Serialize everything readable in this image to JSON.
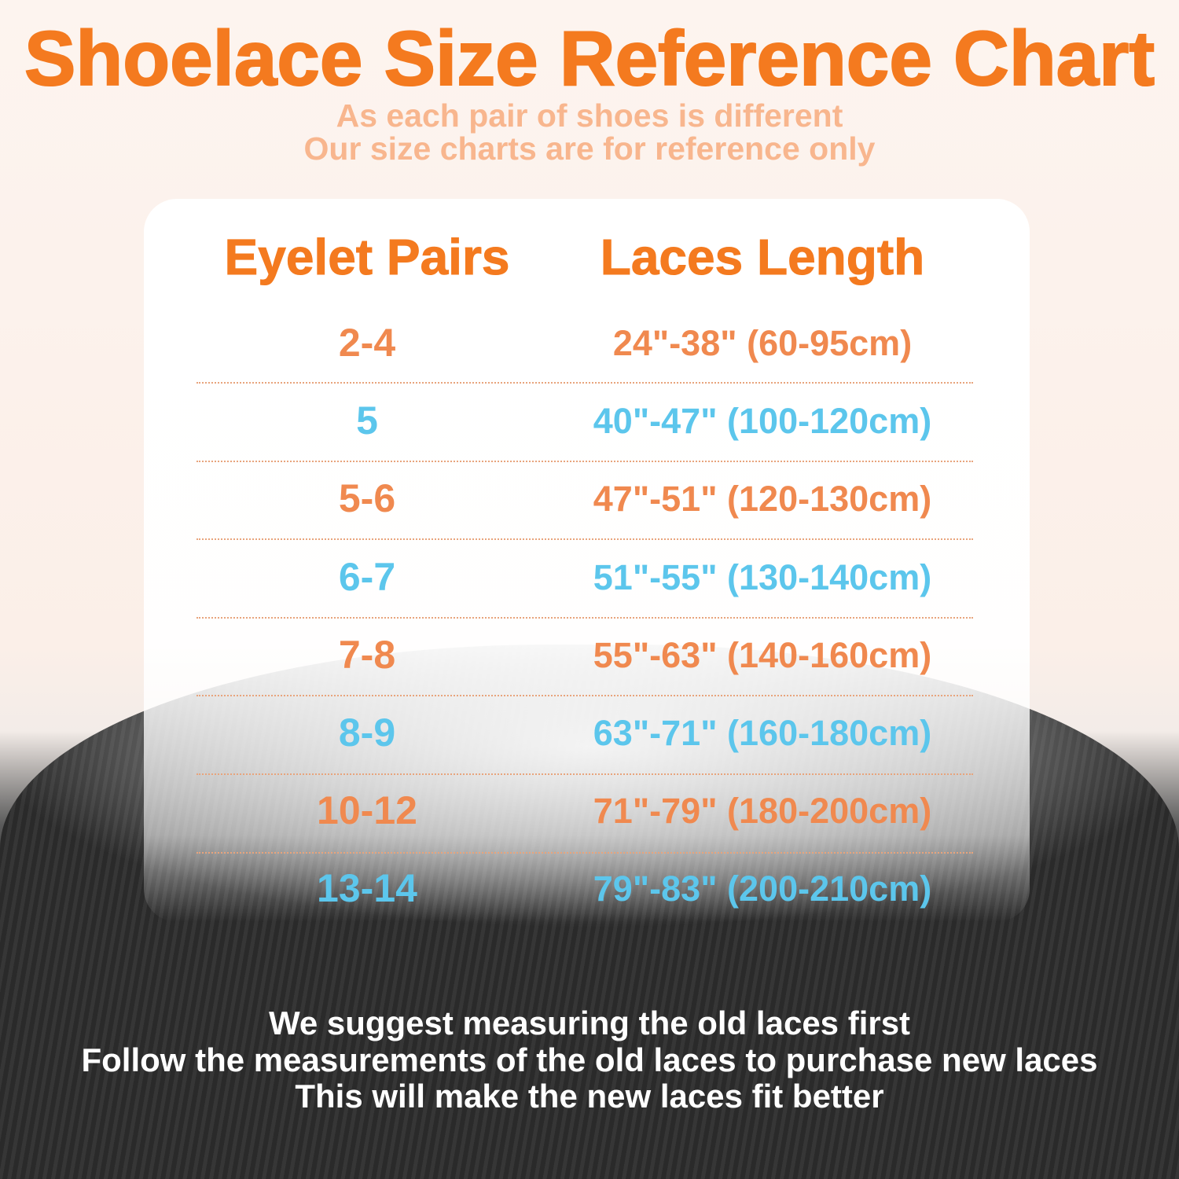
{
  "title": "Shoelace Size Reference Chart",
  "subtitle": [
    "As each pair of shoes is different",
    "Our size charts are for reference only"
  ],
  "table": {
    "headers": [
      "Eyelet Pairs",
      "Laces Length"
    ],
    "rows": [
      {
        "pairs": "2-4",
        "length": "24\"-38\" (60-95cm)",
        "color": "#f0894f"
      },
      {
        "pairs": "5",
        "length": "40\"-47\" (100-120cm)",
        "color": "#5cc6ec"
      },
      {
        "pairs": "5-6",
        "length": "47\"-51\" (120-130cm)",
        "color": "#f0894f"
      },
      {
        "pairs": "6-7",
        "length": "51\"-55\" (130-140cm)",
        "color": "#5cc6ec"
      },
      {
        "pairs": "7-8",
        "length": "55\"-63\" (140-160cm)",
        "color": "#f0894f"
      },
      {
        "pairs": "8-9",
        "length": "63\"-71\" (160-180cm)",
        "color": "#5cc6ec"
      },
      {
        "pairs": "10-12",
        "length": "71\"-79\" (180-200cm)",
        "color": "#f0894f"
      },
      {
        "pairs": "13-14",
        "length": "79\"-83\" (200-210cm)",
        "color": "#5cc6ec"
      }
    ]
  },
  "footer": [
    "We suggest measuring the old laces first",
    "Follow the measurements of the old laces to purchase new laces",
    "This will make the new laces fit better"
  ],
  "colors": {
    "title": "#f47a1f",
    "orange": "#f0894f",
    "blue": "#5cc6ec"
  }
}
